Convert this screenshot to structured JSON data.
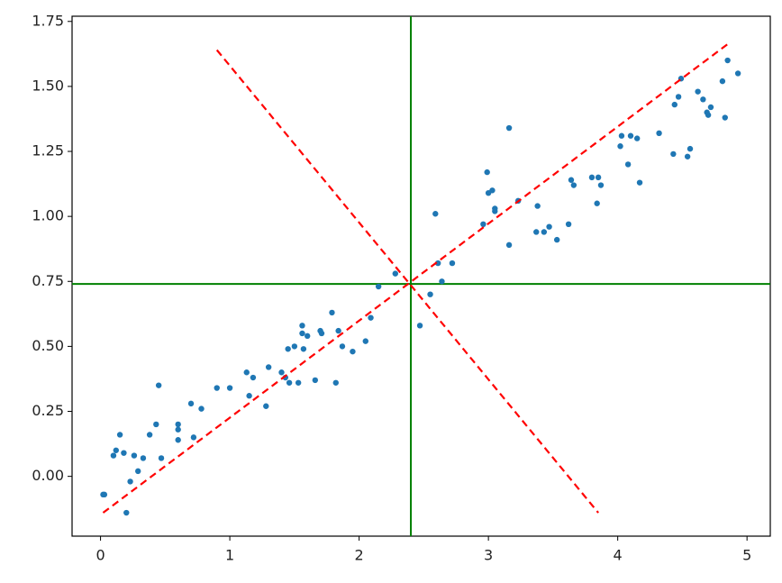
{
  "chart_data": {
    "type": "scatter",
    "color": "#1f77b4",
    "x": [
      0.02,
      0.03,
      0.1,
      0.12,
      0.15,
      0.18,
      0.2,
      0.23,
      0.26,
      0.29,
      0.33,
      0.38,
      0.43,
      0.45,
      0.47,
      0.6,
      0.6,
      0.6,
      0.7,
      0.72,
      0.78,
      0.9,
      1.0,
      1.13,
      1.15,
      1.18,
      1.28,
      1.3,
      1.4,
      1.43,
      1.45,
      1.46,
      1.5,
      1.53,
      1.56,
      1.56,
      1.57,
      1.6,
      1.66,
      1.7,
      1.71,
      1.79,
      1.82,
      1.84,
      1.87,
      1.95,
      2.05,
      2.09,
      2.15,
      2.28,
      2.47,
      2.55,
      2.59,
      2.61,
      2.64,
      2.72,
      2.96,
      2.99,
      3.0,
      3.03,
      3.05,
      3.05,
      3.16,
      3.16,
      3.23,
      3.37,
      3.38,
      3.43,
      3.47,
      3.53,
      3.62,
      3.64,
      3.66,
      3.8,
      3.84,
      3.85,
      3.87,
      4.02,
      4.03,
      4.08,
      4.1,
      4.15,
      4.17,
      4.32,
      4.43,
      4.44,
      4.47,
      4.49,
      4.54,
      4.56,
      4.62,
      4.66,
      4.69,
      4.7,
      4.72,
      4.81,
      4.83,
      4.85,
      4.93
    ],
    "values": [
      -0.07,
      -0.07,
      0.08,
      0.1,
      0.16,
      0.09,
      -0.14,
      -0.02,
      0.08,
      0.02,
      0.07,
      0.16,
      0.2,
      0.35,
      0.07,
      0.2,
      0.18,
      0.14,
      0.28,
      0.15,
      0.26,
      0.34,
      0.34,
      0.4,
      0.31,
      0.38,
      0.27,
      0.42,
      0.4,
      0.38,
      0.49,
      0.36,
      0.5,
      0.36,
      0.58,
      0.55,
      0.49,
      0.54,
      0.37,
      0.56,
      0.55,
      0.63,
      0.36,
      0.56,
      0.5,
      0.48,
      0.52,
      0.61,
      0.73,
      0.78,
      0.58,
      0.7,
      1.01,
      0.82,
      0.75,
      0.82,
      0.97,
      1.17,
      1.09,
      1.1,
      1.02,
      1.03,
      1.34,
      0.89,
      1.06,
      0.94,
      1.04,
      0.94,
      0.96,
      0.91,
      0.97,
      1.14,
      1.12,
      1.15,
      1.05,
      1.15,
      1.12,
      1.27,
      1.31,
      1.2,
      1.31,
      1.3,
      1.13,
      1.32,
      1.24,
      1.43,
      1.46,
      1.53,
      1.23,
      1.26,
      1.48,
      1.45,
      1.4,
      1.39,
      1.42,
      1.52,
      1.38,
      1.6,
      1.55
    ],
    "lines": [
      {
        "x": [
          0.02,
          4.87
        ],
        "values": [
          -0.14,
          1.67
        ],
        "color": "#ff0000",
        "dashed": true
      },
      {
        "x": [
          0.9,
          3.85
        ],
        "values": [
          1.64,
          -0.14
        ],
        "color": "#ff0000",
        "dashed": true
      }
    ],
    "hline": 0.74,
    "vline": 2.4,
    "guide_color": "#008000",
    "xlim": [
      -0.22,
      5.18
    ],
    "ylim": [
      -0.23,
      1.77
    ],
    "xticks": [
      0,
      1,
      2,
      3,
      4,
      5
    ],
    "yticks": [
      {
        "value": 0,
        "label": "0.00"
      },
      {
        "value": 0.25,
        "label": "0.25"
      },
      {
        "value": 0.5,
        "label": "0.50"
      },
      {
        "value": 0.75,
        "label": "0.75"
      },
      {
        "value": 1,
        "label": "1.00"
      },
      {
        "value": 1.25,
        "label": "1.25"
      },
      {
        "value": 1.5,
        "label": "1.50"
      },
      {
        "value": 1.75,
        "label": "1.75"
      }
    ]
  }
}
